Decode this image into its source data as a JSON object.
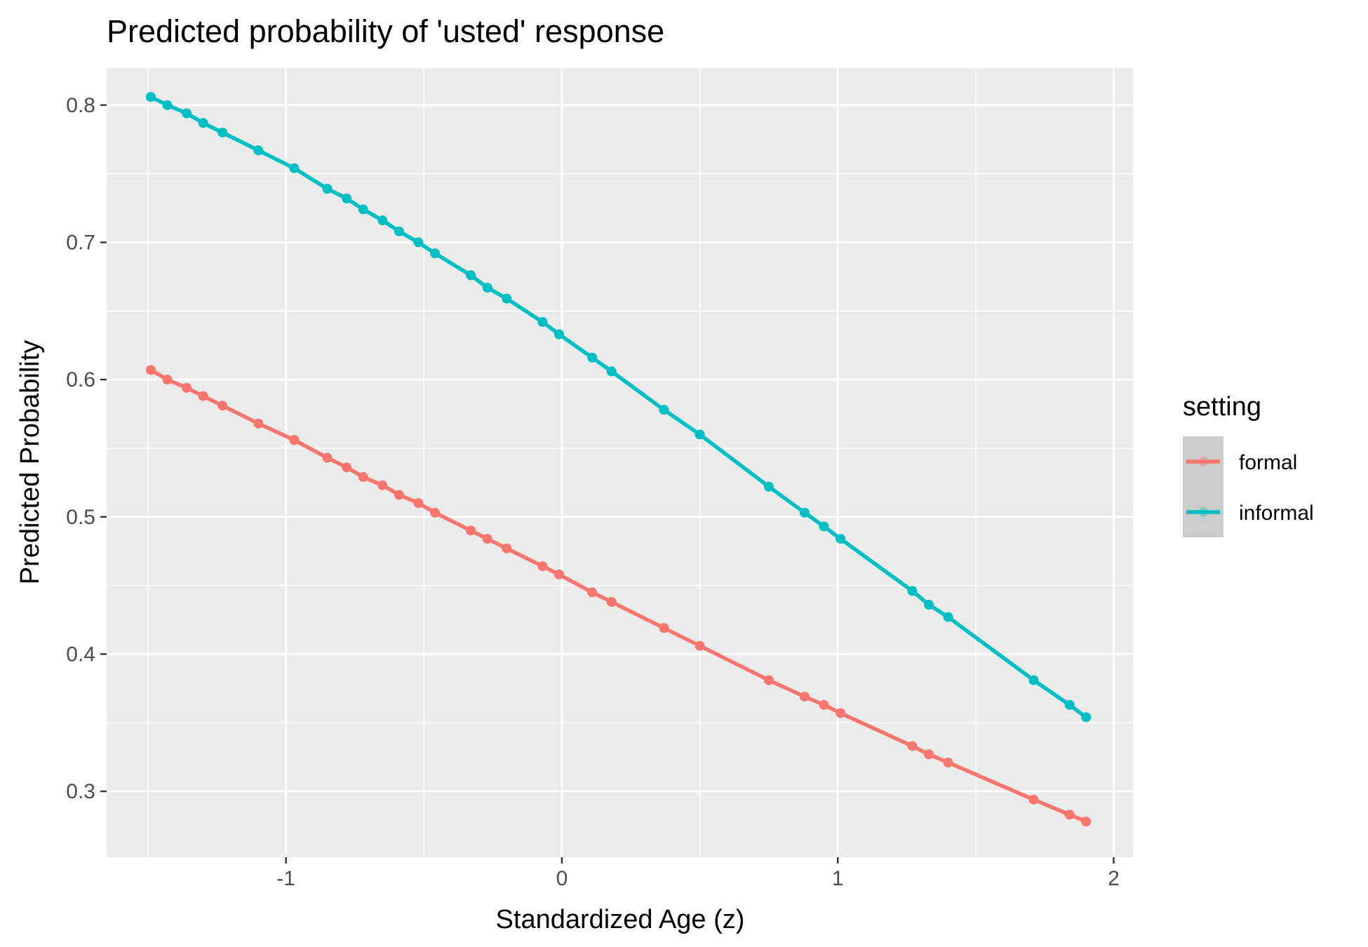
{
  "chart_data": {
    "type": "line",
    "title": "Predicted probability of 'usted' response",
    "xlabel": "Standardized Age (z)",
    "ylabel": "Predicted Probability",
    "xlim": [
      -1.65,
      2.07
    ],
    "ylim": [
      0.252,
      0.827
    ],
    "x_ticks": [
      -1,
      0,
      1,
      2
    ],
    "x_tick_labels": [
      "-1",
      "0",
      "1",
      "2"
    ],
    "y_ticks": [
      0.3,
      0.4,
      0.5,
      0.6,
      0.7,
      0.8
    ],
    "y_tick_labels": [
      "0.3",
      "0.4",
      "0.5",
      "0.6",
      "0.7",
      "0.8"
    ],
    "grid": true,
    "legend": {
      "title": "setting",
      "position": "right"
    },
    "x": [
      -1.49,
      -1.43,
      -1.36,
      -1.3,
      -1.23,
      -1.1,
      -0.97,
      -0.85,
      -0.78,
      -0.72,
      -0.65,
      -0.59,
      -0.52,
      -0.46,
      -0.33,
      -0.27,
      -0.2,
      -0.07,
      -0.01,
      0.11,
      0.18,
      0.37,
      0.5,
      0.75,
      0.88,
      0.95,
      1.01,
      1.27,
      1.33,
      1.4,
      1.71,
      1.84,
      1.9
    ],
    "series": [
      {
        "name": "formal",
        "color": "#F8766D",
        "values": [
          0.607,
          0.6,
          0.594,
          0.588,
          0.581,
          0.568,
          0.556,
          0.543,
          0.536,
          0.529,
          0.523,
          0.516,
          0.51,
          0.503,
          0.49,
          0.484,
          0.477,
          0.464,
          0.458,
          0.445,
          0.438,
          0.419,
          0.406,
          0.381,
          0.369,
          0.363,
          0.357,
          0.333,
          0.327,
          0.321,
          0.294,
          0.283,
          0.278
        ]
      },
      {
        "name": "informal",
        "color": "#00BFC4",
        "values": [
          0.806,
          0.8,
          0.794,
          0.787,
          0.78,
          0.767,
          0.754,
          0.739,
          0.732,
          0.724,
          0.716,
          0.708,
          0.7,
          0.692,
          0.676,
          0.667,
          0.659,
          0.642,
          0.633,
          0.616,
          0.606,
          0.578,
          0.56,
          0.522,
          0.503,
          0.493,
          0.484,
          0.446,
          0.436,
          0.427,
          0.381,
          0.363,
          0.354
        ]
      }
    ]
  }
}
